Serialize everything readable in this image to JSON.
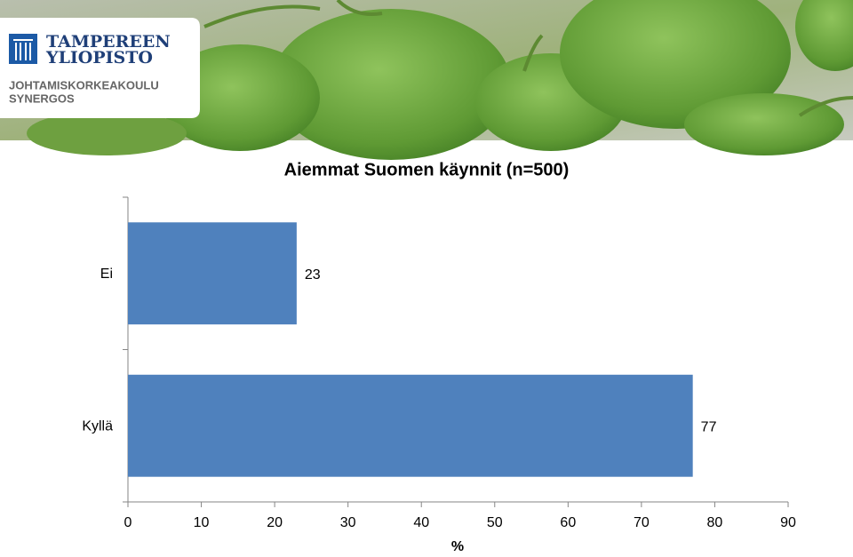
{
  "header": {
    "logo": [
      "TAMPEREEN",
      "YLIOPISTO",
      "JOHTAMISKORKEAKOULU",
      "SYNERGOS"
    ]
  },
  "chart_data": {
    "type": "bar",
    "orientation": "horizontal",
    "title": "Aiemmat Suomen käynnit (n=500)",
    "categories": [
      "Ei",
      "Kyllä"
    ],
    "values": [
      23,
      77
    ],
    "color": "#4f81bd",
    "xlim": [
      0,
      90
    ],
    "xticks": [
      0,
      10,
      20,
      30,
      40,
      50,
      60,
      70,
      80,
      90
    ],
    "x_label": "%",
    "grid": false
  }
}
